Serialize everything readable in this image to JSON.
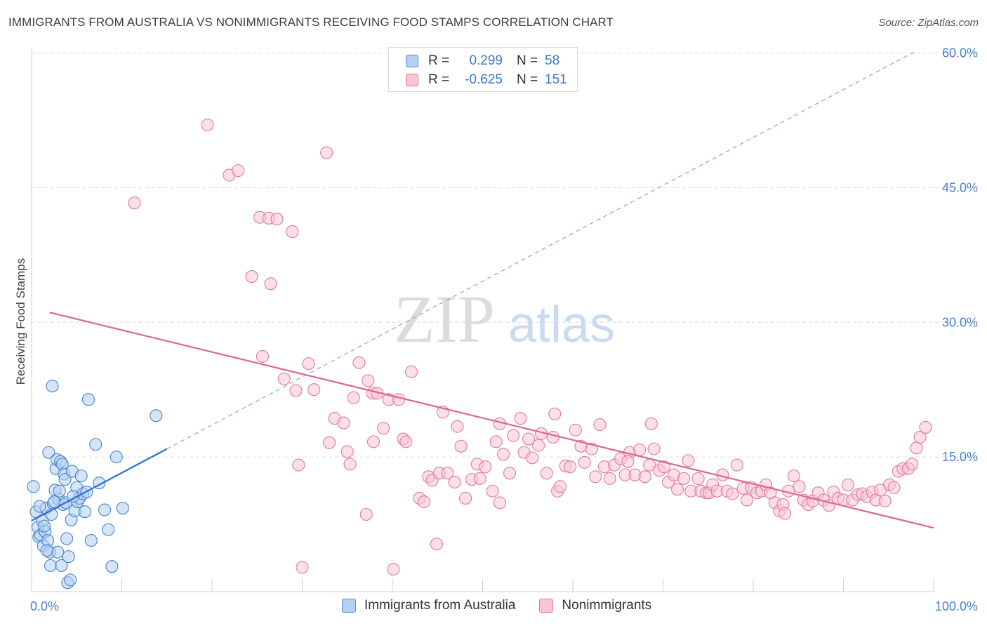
{
  "title": "IMMIGRANTS FROM AUSTRALIA VS NONIMMIGRANTS RECEIVING FOOD STAMPS CORRELATION CHART",
  "source": "Source: ZipAtlas.com",
  "watermark": {
    "zip": "ZIP",
    "atlas": "atlas"
  },
  "legend": {
    "r_label": "R =",
    "n_label": "N =",
    "rows": [
      {
        "swatch_fill": "#b3cff2",
        "swatch_stroke": "#5b8fd6",
        "r": "0.299",
        "n": "58"
      },
      {
        "swatch_fill": "#f9c4d3",
        "swatch_stroke": "#e07a99",
        "r": "-0.625",
        "n": "151"
      }
    ]
  },
  "bottom_legend": [
    {
      "label": "Immigrants from Australia",
      "swatch_fill": "#b3cff2",
      "swatch_stroke": "#5b8fd6"
    },
    {
      "label": "Nonimmigrants",
      "swatch_fill": "#f9c4d3",
      "swatch_stroke": "#e07a99"
    }
  ],
  "chart_data": {
    "type": "scatter",
    "title": "IMMIGRANTS FROM AUSTRALIA VS NONIMMIGRANTS RECEIVING FOOD STAMPS CORRELATION CHART",
    "xlabel": "",
    "ylabel": "Receiving Food Stamps",
    "xlim": [
      0,
      100
    ],
    "ylim": [
      0,
      62
    ],
    "x_tick_labels": [
      {
        "value": 0,
        "label": "0.0%"
      },
      {
        "value": 100,
        "label": "100.0%"
      }
    ],
    "y_tick_labels": [
      {
        "value": 15,
        "label": "15.0%"
      },
      {
        "value": 30,
        "label": "30.0%"
      },
      {
        "value": 45,
        "label": "45.0%"
      },
      {
        "value": 60,
        "label": "60.0%"
      }
    ],
    "grid": "horizontal dashed",
    "legend_position": "top-center",
    "colors": {
      "blue": "#4a80cc",
      "pink": "#e07a99",
      "blue_fill": "#b3cff2",
      "pink_fill": "#f9c4d3",
      "blue_line": "#2a6fd6",
      "pink_line": "#e06590"
    },
    "series": [
      {
        "name": "Immigrants from Australia",
        "color": "#5b8fd6",
        "points": [
          [
            0.2,
            11.7
          ],
          [
            0.5,
            8.9
          ],
          [
            0.7,
            7.2
          ],
          [
            0.8,
            6.1
          ],
          [
            1.0,
            6.3
          ],
          [
            1.2,
            7.9
          ],
          [
            1.3,
            5.1
          ],
          [
            1.5,
            6.7
          ],
          [
            1.6,
            9.3
          ],
          [
            1.8,
            5.7
          ],
          [
            1.9,
            15.5
          ],
          [
            2.0,
            4.4
          ],
          [
            2.1,
            2.9
          ],
          [
            2.2,
            8.6
          ],
          [
            2.4,
            9.8
          ],
          [
            2.6,
            11.3
          ],
          [
            2.7,
            13.7
          ],
          [
            2.8,
            14.7
          ],
          [
            2.9,
            4.4
          ],
          [
            3.0,
            10.3
          ],
          [
            3.1,
            11.2
          ],
          [
            3.2,
            14.5
          ],
          [
            3.3,
            2.9
          ],
          [
            3.4,
            14.2
          ],
          [
            3.5,
            9.7
          ],
          [
            3.6,
            13.1
          ],
          [
            3.7,
            12.5
          ],
          [
            3.8,
            9.9
          ],
          [
            4.0,
            1.0
          ],
          [
            4.1,
            3.9
          ],
          [
            4.3,
            1.3
          ],
          [
            4.4,
            8.0
          ],
          [
            4.5,
            13.4
          ],
          [
            4.8,
            9.0
          ],
          [
            5.0,
            11.6
          ],
          [
            5.1,
            10.0
          ],
          [
            5.3,
            10.4
          ],
          [
            5.5,
            12.9
          ],
          [
            5.7,
            10.9
          ],
          [
            5.9,
            8.9
          ],
          [
            6.1,
            11.1
          ],
          [
            6.3,
            21.4
          ],
          [
            6.6,
            5.7
          ],
          [
            7.1,
            16.4
          ],
          [
            7.5,
            12.1
          ],
          [
            8.1,
            9.1
          ],
          [
            8.5,
            6.9
          ],
          [
            8.9,
            2.8
          ],
          [
            9.4,
            15.0
          ],
          [
            10.1,
            9.3
          ],
          [
            13.8,
            19.6
          ],
          [
            2.3,
            22.9
          ],
          [
            1.4,
            7.3
          ],
          [
            0.9,
            9.5
          ],
          [
            1.7,
            4.6
          ],
          [
            2.5,
            10.0
          ],
          [
            3.9,
            5.9
          ],
          [
            4.6,
            10.6
          ]
        ],
        "trend_solid": [
          [
            0,
            7.9
          ],
          [
            15,
            15.9
          ]
        ],
        "trend_dashed": [
          [
            15,
            15.9
          ],
          [
            98,
            60.2
          ]
        ]
      },
      {
        "name": "Nonimmigrants",
        "color": "#e07a99",
        "points": [
          [
            11.4,
            43.3
          ],
          [
            19.5,
            52.0
          ],
          [
            21.9,
            46.4
          ],
          [
            22.9,
            46.9
          ],
          [
            24.4,
            35.1
          ],
          [
            25.3,
            41.7
          ],
          [
            25.6,
            26.2
          ],
          [
            26.3,
            41.6
          ],
          [
            26.5,
            34.3
          ],
          [
            27.2,
            41.5
          ],
          [
            28.0,
            23.7
          ],
          [
            28.9,
            40.1
          ],
          [
            29.3,
            22.4
          ],
          [
            29.6,
            14.1
          ],
          [
            30.0,
            2.7
          ],
          [
            30.7,
            25.4
          ],
          [
            31.3,
            22.5
          ],
          [
            32.7,
            48.9
          ],
          [
            33.0,
            16.6
          ],
          [
            33.6,
            19.3
          ],
          [
            34.6,
            18.8
          ],
          [
            35.0,
            15.6
          ],
          [
            35.3,
            14.2
          ],
          [
            35.7,
            21.6
          ],
          [
            36.3,
            25.5
          ],
          [
            37.1,
            8.6
          ],
          [
            37.3,
            23.5
          ],
          [
            37.8,
            22.1
          ],
          [
            38.3,
            22.1
          ],
          [
            39.0,
            18.2
          ],
          [
            39.6,
            21.4
          ],
          [
            40.1,
            2.5
          ],
          [
            40.7,
            21.4
          ],
          [
            41.2,
            17.0
          ],
          [
            41.5,
            16.7
          ],
          [
            42.1,
            24.5
          ],
          [
            43.0,
            10.4
          ],
          [
            43.5,
            10.0
          ],
          [
            44.0,
            12.8
          ],
          [
            44.4,
            12.4
          ],
          [
            44.9,
            5.3
          ],
          [
            45.2,
            13.2
          ],
          [
            45.6,
            20.0
          ],
          [
            46.1,
            13.2
          ],
          [
            46.9,
            12.2
          ],
          [
            47.2,
            18.4
          ],
          [
            47.6,
            16.2
          ],
          [
            48.1,
            10.4
          ],
          [
            48.8,
            12.5
          ],
          [
            49.4,
            14.2
          ],
          [
            49.7,
            12.6
          ],
          [
            50.3,
            13.9
          ],
          [
            51.1,
            11.2
          ],
          [
            51.5,
            16.7
          ],
          [
            51.9,
            18.7
          ],
          [
            52.3,
            15.3
          ],
          [
            53.0,
            13.2
          ],
          [
            53.4,
            17.4
          ],
          [
            54.2,
            19.3
          ],
          [
            54.6,
            15.5
          ],
          [
            55.1,
            17.0
          ],
          [
            55.5,
            14.9
          ],
          [
            56.2,
            16.3
          ],
          [
            56.5,
            17.6
          ],
          [
            57.1,
            13.2
          ],
          [
            57.8,
            17.2
          ],
          [
            58.3,
            11.2
          ],
          [
            58.6,
            11.7
          ],
          [
            59.2,
            14.0
          ],
          [
            59.7,
            13.9
          ],
          [
            60.3,
            18.0
          ],
          [
            60.9,
            16.2
          ],
          [
            61.3,
            14.4
          ],
          [
            62.1,
            15.9
          ],
          [
            62.5,
            12.8
          ],
          [
            63.0,
            18.6
          ],
          [
            63.5,
            13.9
          ],
          [
            64.1,
            12.6
          ],
          [
            64.6,
            14.1
          ],
          [
            65.3,
            14.8
          ],
          [
            65.8,
            13.0
          ],
          [
            66.3,
            15.5
          ],
          [
            66.9,
            13.0
          ],
          [
            67.4,
            15.8
          ],
          [
            68.0,
            12.8
          ],
          [
            68.5,
            14.1
          ],
          [
            69.0,
            15.9
          ],
          [
            69.6,
            13.5
          ],
          [
            70.1,
            13.9
          ],
          [
            70.6,
            12.2
          ],
          [
            71.2,
            13.0
          ],
          [
            71.6,
            11.4
          ],
          [
            72.3,
            12.6
          ],
          [
            72.8,
            14.6
          ],
          [
            73.1,
            11.2
          ],
          [
            73.9,
            12.6
          ],
          [
            74.2,
            11.2
          ],
          [
            74.8,
            11.0
          ],
          [
            75.1,
            11.0
          ],
          [
            75.5,
            11.9
          ],
          [
            76.0,
            11.2
          ],
          [
            76.6,
            13.0
          ],
          [
            77.1,
            11.2
          ],
          [
            77.7,
            10.9
          ],
          [
            78.2,
            14.1
          ],
          [
            78.9,
            11.5
          ],
          [
            79.3,
            10.2
          ],
          [
            79.8,
            11.6
          ],
          [
            80.4,
            11.0
          ],
          [
            80.9,
            11.2
          ],
          [
            81.4,
            11.9
          ],
          [
            81.9,
            11.0
          ],
          [
            82.4,
            9.9
          ],
          [
            82.9,
            9.0
          ],
          [
            83.3,
            9.7
          ],
          [
            83.9,
            11.2
          ],
          [
            84.5,
            12.9
          ],
          [
            85.1,
            11.7
          ],
          [
            85.6,
            10.2
          ],
          [
            86.1,
            9.7
          ],
          [
            86.6,
            10.1
          ],
          [
            87.2,
            11.0
          ],
          [
            87.8,
            10.2
          ],
          [
            88.4,
            9.6
          ],
          [
            88.9,
            11.1
          ],
          [
            89.4,
            10.4
          ],
          [
            90.0,
            10.2
          ],
          [
            90.5,
            11.9
          ],
          [
            91.0,
            10.2
          ],
          [
            91.6,
            10.8
          ],
          [
            92.1,
            10.9
          ],
          [
            92.6,
            10.6
          ],
          [
            93.2,
            11.1
          ],
          [
            93.6,
            10.2
          ],
          [
            94.1,
            11.3
          ],
          [
            94.6,
            10.1
          ],
          [
            95.1,
            11.9
          ],
          [
            95.6,
            11.6
          ],
          [
            96.1,
            13.4
          ],
          [
            96.6,
            13.7
          ],
          [
            97.2,
            13.7
          ],
          [
            97.6,
            14.2
          ],
          [
            98.1,
            16.0
          ],
          [
            98.5,
            17.2
          ],
          [
            99.1,
            18.3
          ],
          [
            68.7,
            18.7
          ],
          [
            37.9,
            16.7
          ],
          [
            51.9,
            9.9
          ],
          [
            66.1,
            14.5
          ],
          [
            83.5,
            8.7
          ],
          [
            58.0,
            19.8
          ]
        ],
        "trend_solid": [
          [
            2,
            31.1
          ],
          [
            100,
            7.1
          ]
        ]
      }
    ]
  }
}
